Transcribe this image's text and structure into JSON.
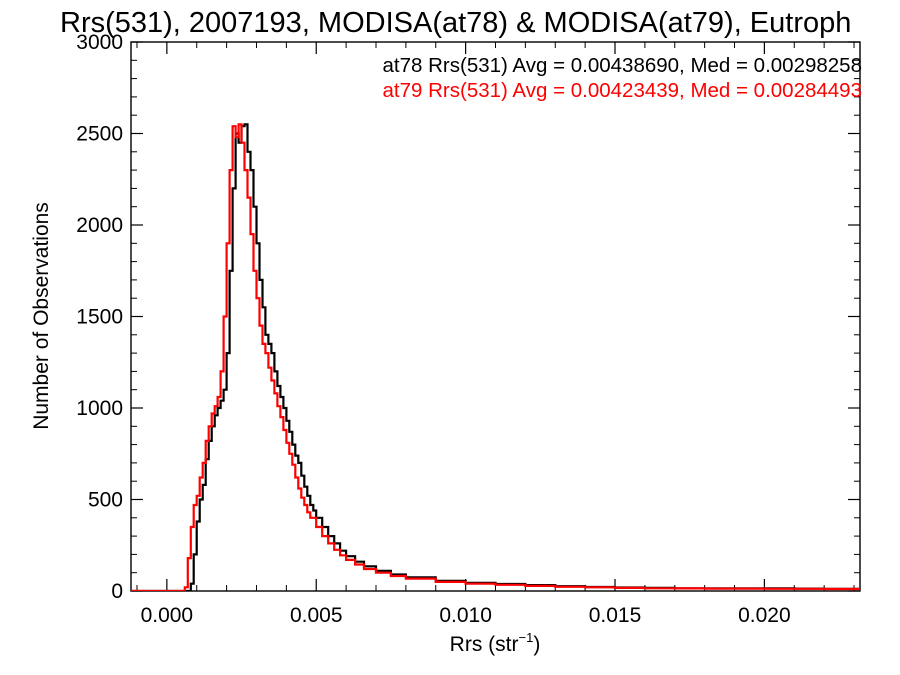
{
  "chart_data": {
    "type": "line",
    "title": "Rrs(531), 2007193, MODISA(at78) & MODISA(at79), Eutroph",
    "xlabel": "Rrs (str",
    "xlabel_exponent": "−1",
    "xlabel_close": ")",
    "ylabel": "Number of Observations",
    "xlim": [
      -0.0012,
      0.0232
    ],
    "ylim": [
      0,
      3000
    ],
    "xticks": [
      0.0,
      0.005,
      0.01,
      0.015,
      0.02
    ],
    "xtick_labels": [
      "0.000",
      "0.005",
      "0.010",
      "0.015",
      "0.020"
    ],
    "yticks": [
      0,
      500,
      1000,
      1500,
      2000,
      2500,
      3000
    ],
    "ytick_labels": [
      "0",
      "500",
      "1000",
      "1500",
      "2000",
      "2500",
      "3000"
    ],
    "grid": false,
    "step": true,
    "annotations": [
      {
        "text": "at78 Rrs(531) Avg = 0.00438690, Med = 0.00298258",
        "color": "#000000"
      },
      {
        "text": "at79 Rrs(531) Avg = 0.00423439, Med = 0.00284493",
        "color": "#ff0000"
      }
    ],
    "series": [
      {
        "name": "at78",
        "color": "#000000",
        "points": [
          [
            0.0007,
            0
          ],
          [
            0.0008,
            40
          ],
          [
            0.0009,
            200
          ],
          [
            0.001,
            380
          ],
          [
            0.0011,
            500
          ],
          [
            0.0012,
            580
          ],
          [
            0.0013,
            720
          ],
          [
            0.0014,
            820
          ],
          [
            0.0015,
            900
          ],
          [
            0.0016,
            960
          ],
          [
            0.0017,
            1000
          ],
          [
            0.0018,
            1040
          ],
          [
            0.0019,
            1100
          ],
          [
            0.002,
            1300
          ],
          [
            0.0021,
            1750
          ],
          [
            0.0022,
            2200
          ],
          [
            0.0023,
            2500
          ],
          [
            0.0024,
            2450
          ],
          [
            0.0025,
            2540
          ],
          [
            0.0026,
            2550
          ],
          [
            0.0027,
            2400
          ],
          [
            0.0028,
            2300
          ],
          [
            0.0029,
            2100
          ],
          [
            0.003,
            1900
          ],
          [
            0.0031,
            1700
          ],
          [
            0.0032,
            1550
          ],
          [
            0.0033,
            1400
          ],
          [
            0.0034,
            1350
          ],
          [
            0.0035,
            1300
          ],
          [
            0.0036,
            1200
          ],
          [
            0.0037,
            1120
          ],
          [
            0.0038,
            1060
          ],
          [
            0.0039,
            1000
          ],
          [
            0.004,
            930
          ],
          [
            0.0041,
            870
          ],
          [
            0.0042,
            800
          ],
          [
            0.0043,
            740
          ],
          [
            0.0044,
            700
          ],
          [
            0.0045,
            630
          ],
          [
            0.0046,
            570
          ],
          [
            0.0047,
            520
          ],
          [
            0.0048,
            470
          ],
          [
            0.0049,
            440
          ],
          [
            0.005,
            400
          ],
          [
            0.0052,
            350
          ],
          [
            0.0054,
            300
          ],
          [
            0.0056,
            260
          ],
          [
            0.0058,
            220
          ],
          [
            0.006,
            190
          ],
          [
            0.0063,
            160
          ],
          [
            0.0066,
            135
          ],
          [
            0.007,
            110
          ],
          [
            0.0075,
            90
          ],
          [
            0.008,
            75
          ],
          [
            0.009,
            55
          ],
          [
            0.01,
            45
          ],
          [
            0.011,
            38
          ],
          [
            0.012,
            32
          ],
          [
            0.013,
            26
          ],
          [
            0.014,
            22
          ],
          [
            0.015,
            19
          ],
          [
            0.016,
            17
          ],
          [
            0.017,
            15
          ],
          [
            0.018,
            14
          ],
          [
            0.019,
            14
          ],
          [
            0.02,
            14
          ],
          [
            0.021,
            13
          ],
          [
            0.022,
            12
          ],
          [
            0.0232,
            11
          ]
        ]
      },
      {
        "name": "at79",
        "color": "#ff0000",
        "points": [
          [
            0.0005,
            0
          ],
          [
            0.0006,
            20
          ],
          [
            0.0007,
            180
          ],
          [
            0.0008,
            350
          ],
          [
            0.0009,
            470
          ],
          [
            0.001,
            520
          ],
          [
            0.0011,
            620
          ],
          [
            0.0012,
            700
          ],
          [
            0.0013,
            820
          ],
          [
            0.0014,
            900
          ],
          [
            0.0015,
            970
          ],
          [
            0.0016,
            1010
          ],
          [
            0.0017,
            1060
          ],
          [
            0.0018,
            1200
          ],
          [
            0.0019,
            1500
          ],
          [
            0.002,
            1900
          ],
          [
            0.0021,
            2300
          ],
          [
            0.0022,
            2540
          ],
          [
            0.0023,
            2480
          ],
          [
            0.0024,
            2550
          ],
          [
            0.0025,
            2450
          ],
          [
            0.0026,
            2300
          ],
          [
            0.0027,
            2150
          ],
          [
            0.0028,
            1950
          ],
          [
            0.0029,
            1750
          ],
          [
            0.003,
            1600
          ],
          [
            0.0031,
            1450
          ],
          [
            0.0032,
            1350
          ],
          [
            0.0033,
            1300
          ],
          [
            0.0034,
            1220
          ],
          [
            0.0035,
            1150
          ],
          [
            0.0036,
            1080
          ],
          [
            0.0037,
            1010
          ],
          [
            0.0038,
            950
          ],
          [
            0.0039,
            880
          ],
          [
            0.004,
            810
          ],
          [
            0.0041,
            750
          ],
          [
            0.0042,
            690
          ],
          [
            0.0043,
            620
          ],
          [
            0.0044,
            560
          ],
          [
            0.0045,
            510
          ],
          [
            0.0046,
            470
          ],
          [
            0.0047,
            430
          ],
          [
            0.0048,
            400
          ],
          [
            0.005,
            350
          ],
          [
            0.0052,
            300
          ],
          [
            0.0054,
            260
          ],
          [
            0.0056,
            225
          ],
          [
            0.0058,
            195
          ],
          [
            0.006,
            170
          ],
          [
            0.0063,
            145
          ],
          [
            0.0066,
            120
          ],
          [
            0.007,
            100
          ],
          [
            0.0075,
            82
          ],
          [
            0.008,
            68
          ],
          [
            0.009,
            50
          ],
          [
            0.01,
            40
          ],
          [
            0.011,
            34
          ],
          [
            0.012,
            28
          ],
          [
            0.013,
            23
          ],
          [
            0.014,
            20
          ],
          [
            0.015,
            17
          ],
          [
            0.016,
            15
          ],
          [
            0.017,
            14
          ],
          [
            0.018,
            13
          ],
          [
            0.019,
            13
          ],
          [
            0.02,
            12
          ],
          [
            0.021,
            12
          ],
          [
            0.022,
            11
          ],
          [
            0.0232,
            10
          ]
        ]
      }
    ]
  }
}
